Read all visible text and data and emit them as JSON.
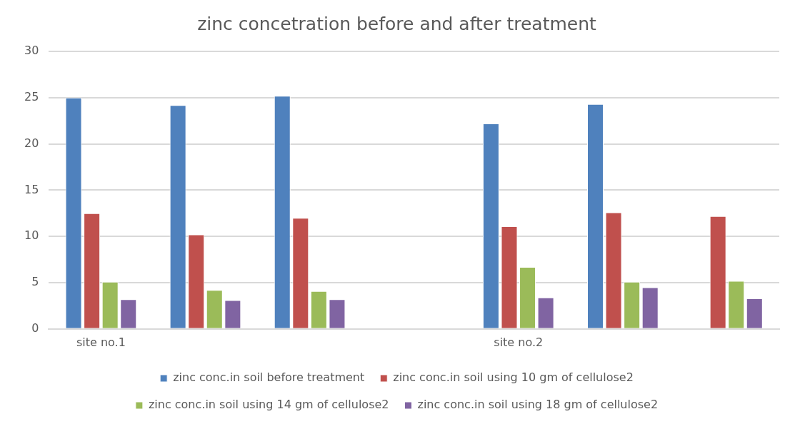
{
  "chart_data": {
    "type": "bar",
    "title": "zinc concetration before and after treatment",
    "categories": [
      "site no.1",
      null,
      null,
      null,
      "site no.2",
      null,
      null
    ],
    "series": [
      {
        "name": "zinc conc.in soil before treatment",
        "color": "#4f81bd",
        "values": [
          25.0,
          24.2,
          25.2,
          null,
          22.2,
          24.3,
          null
        ]
      },
      {
        "name": "zinc conc.in soil using 10 gm of cellulose2",
        "color": "#c0504d",
        "values": [
          12.5,
          10.2,
          12.0,
          null,
          11.1,
          12.6,
          12.2
        ]
      },
      {
        "name": "zinc conc.in soil using 14 gm of cellulose2",
        "color": "#9bbb59",
        "values": [
          5.1,
          4.2,
          4.1,
          null,
          6.7,
          5.1,
          5.2
        ]
      },
      {
        "name": "zinc conc.in soil using 18 gm of cellulose2",
        "color": "#8064a2",
        "values": [
          3.2,
          3.1,
          3.2,
          null,
          3.4,
          4.5,
          3.3
        ]
      }
    ],
    "ylim": [
      0,
      30
    ],
    "yticks": [
      0,
      5,
      10,
      15,
      20,
      25,
      30
    ],
    "grid": "y",
    "legend": "bottom"
  }
}
